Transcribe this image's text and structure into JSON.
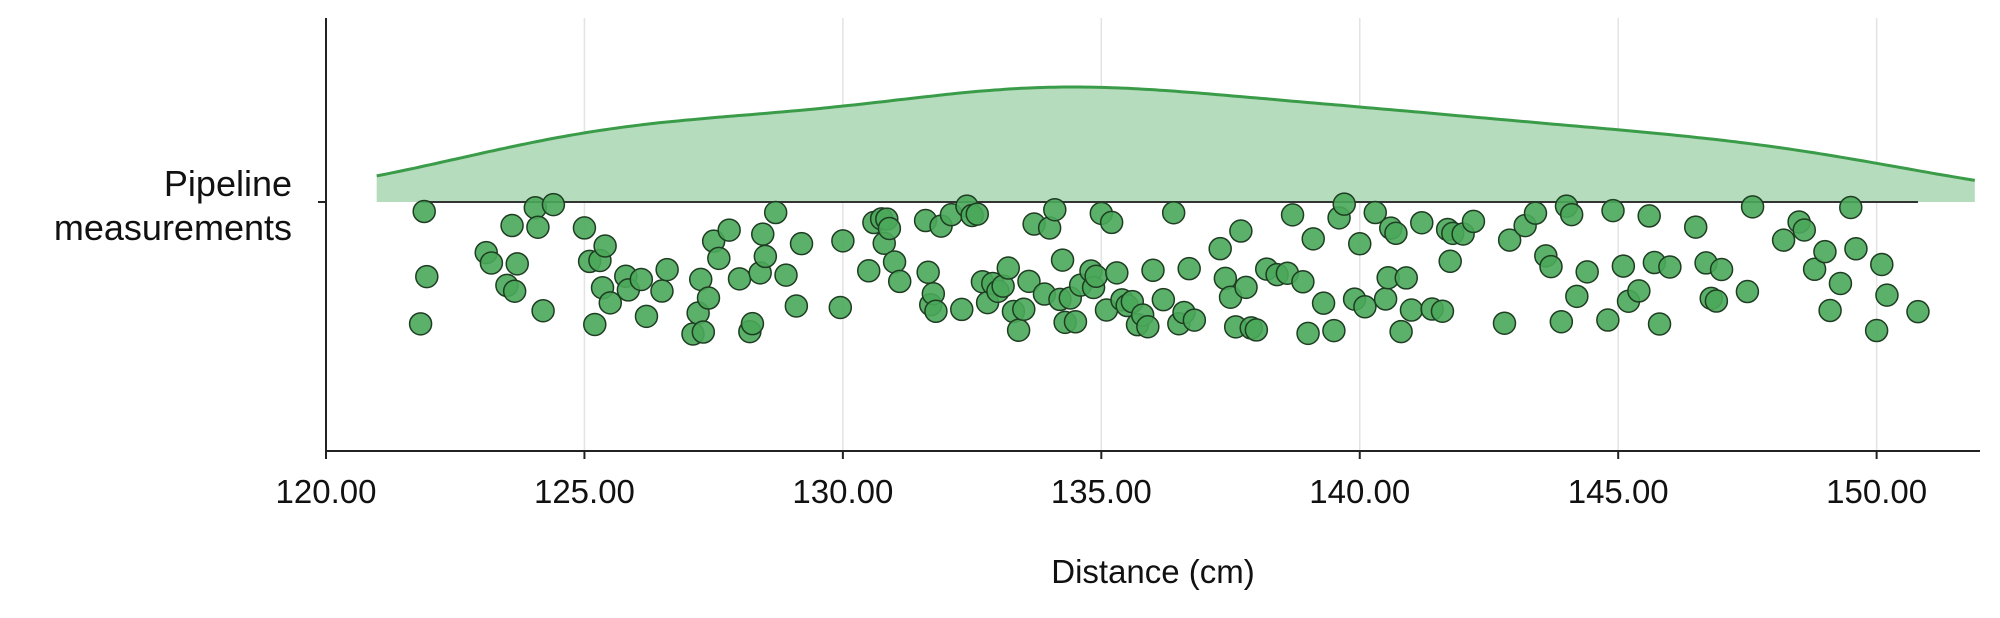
{
  "chart_data": {
    "type": "strip-density",
    "categories": [
      "Pipeline measurements"
    ],
    "xlabel": "Distance (cm)",
    "xlim": [
      120,
      152
    ],
    "xticks": [
      {
        "value": 120,
        "label": "120.00"
      },
      {
        "value": 125,
        "label": "125.00"
      },
      {
        "value": 130,
        "label": "130.00"
      },
      {
        "value": 135,
        "label": "135.00"
      },
      {
        "value": 140,
        "label": "140.00"
      },
      {
        "value": 145,
        "label": "145.00"
      },
      {
        "value": 150,
        "label": "150.00"
      }
    ],
    "grid": true,
    "color": "#4aa85a",
    "density_color": "#b6dcbe",
    "values": [
      121.83,
      121.9,
      121.95,
      123.1,
      123.2,
      123.5,
      123.6,
      123.65,
      123.7,
      124.05,
      124.1,
      124.2,
      124.4,
      125.0,
      125.1,
      125.2,
      125.3,
      125.35,
      125.4,
      125.5,
      125.8,
      125.85,
      126.1,
      126.2,
      126.5,
      126.6,
      127.1,
      127.2,
      127.25,
      127.3,
      127.4,
      127.5,
      127.6,
      127.8,
      128.0,
      128.2,
      128.25,
      128.4,
      128.45,
      128.5,
      128.7,
      128.9,
      129.1,
      129.2,
      129.95,
      130.0,
      130.5,
      130.6,
      130.75,
      130.8,
      130.85,
      130.9,
      131.0,
      131.1,
      131.6,
      131.65,
      131.7,
      131.75,
      131.8,
      131.9,
      132.1,
      132.3,
      132.4,
      132.5,
      132.6,
      132.7,
      132.8,
      132.9,
      133.0,
      133.1,
      133.2,
      133.3,
      133.4,
      133.5,
      133.6,
      133.7,
      133.9,
      134.0,
      134.1,
      134.2,
      134.25,
      134.3,
      134.4,
      134.5,
      134.6,
      134.8,
      134.85,
      134.9,
      135.0,
      135.1,
      135.2,
      135.3,
      135.4,
      135.5,
      135.6,
      135.7,
      135.8,
      135.9,
      136.0,
      136.2,
      136.4,
      136.5,
      136.6,
      136.7,
      136.8,
      137.3,
      137.4,
      137.5,
      137.6,
      137.7,
      137.8,
      137.9,
      138.0,
      138.2,
      138.4,
      138.6,
      138.7,
      138.9,
      139.0,
      139.1,
      139.3,
      139.5,
      139.6,
      139.7,
      139.9,
      140.0,
      140.1,
      140.3,
      140.5,
      140.55,
      140.6,
      140.7,
      140.8,
      140.9,
      141.0,
      141.2,
      141.4,
      141.6,
      141.7,
      141.75,
      141.8,
      142.0,
      142.2,
      142.8,
      142.9,
      143.2,
      143.4,
      143.6,
      143.7,
      143.9,
      144.0,
      144.1,
      144.2,
      144.4,
      144.8,
      144.9,
      145.1,
      145.2,
      145.4,
      145.6,
      145.7,
      145.8,
      146.0,
      146.5,
      146.7,
      146.8,
      146.9,
      147.0,
      147.5,
      147.6,
      148.2,
      148.5,
      148.6,
      148.8,
      149.0,
      149.1,
      149.3,
      149.5,
      149.6,
      150.0,
      150.1,
      150.2,
      150.8
    ]
  }
}
